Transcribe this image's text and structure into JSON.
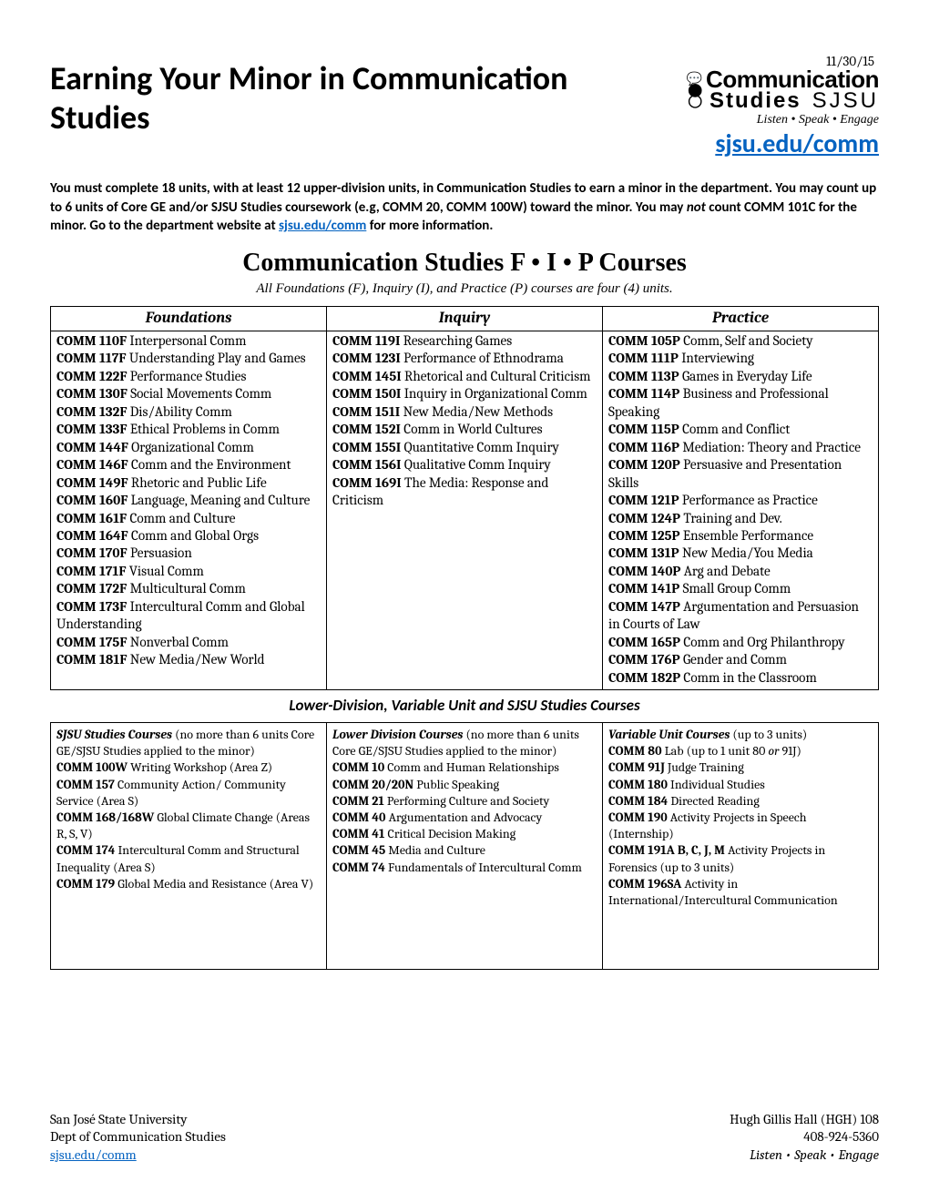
{
  "date": "11/30/15",
  "title": "Earning Your Minor in Communication Studies",
  "logo": {
    "line1": "Communication",
    "line2a": "Studies",
    "line2b": "SJSU",
    "tagline": "Listen  •  Speak  •  Engage",
    "icons": [
      "( )",
      "◯",
      "◯"
    ]
  },
  "header_link_text": "sjsu.edu/comm",
  "intro_a": "You must complete 18 units, with at least 12 upper-division units, in Communication Studies to earn a minor in the department. You may count up to 6 units of Core GE and/or SJSU Studies coursework (e.g, COMM 20, COMM 100W) toward the minor. You may ",
  "intro_not": "not",
  "intro_b": " count COMM 101C for the minor. Go to the department website at ",
  "intro_link": "sjsu.edu/comm",
  "intro_c": " for more information.",
  "fip_title": "Communication Studies F • I • P Courses",
  "fip_sub": "All Foundations (F), Inquiry (I), and Practice (P) courses are four (4) units.",
  "cols": {
    "f": "Foundations",
    "i": "Inquiry",
    "p": "Practice"
  },
  "foundations": [
    {
      "c": "COMM 110F",
      "t": " Interpersonal Comm"
    },
    {
      "c": "COMM 117F",
      "t": " Understanding Play and Games"
    },
    {
      "c": "COMM 122F",
      "t": " Performance Studies"
    },
    {
      "c": "COMM 130F",
      "t": " Social Movements Comm"
    },
    {
      "c": "COMM 132F",
      "t": " Dis/Ability Comm"
    },
    {
      "c": "COMM 133F",
      "t": " Ethical Problems in Comm"
    },
    {
      "c": "COMM 144F",
      "t": " Organizational Comm"
    },
    {
      "c": "COMM 146F",
      "t": " Comm and the Environment"
    },
    {
      "c": "COMM 149F",
      "t": " Rhetoric and Public Life"
    },
    {
      "c": "COMM 160F",
      "t": " Language, Meaning and Culture"
    },
    {
      "c": "COMM 161F",
      "t": " Comm and Culture"
    },
    {
      "c": "COMM 164F",
      "t": " Comm and Global Orgs"
    },
    {
      "c": "COMM 170F",
      "t": " Persuasion"
    },
    {
      "c": "COMM 171F",
      "t": " Visual Comm"
    },
    {
      "c": "COMM 172F",
      "t": " Multicultural Comm"
    },
    {
      "c": "COMM 173F",
      "t": " Intercultural Comm and Global Understanding"
    },
    {
      "c": "COMM 175F",
      "t": " Nonverbal Comm"
    },
    {
      "c": "COMM 181F",
      "t": " New Media/New World"
    }
  ],
  "inquiry": [
    {
      "c": "COMM 119I",
      "t": " Researching Games"
    },
    {
      "c": "COMM 123I",
      "t": " Performance of Ethnodrama"
    },
    {
      "c": "COMM 145I",
      "t": " Rhetorical and Cultural Criticism"
    },
    {
      "c": "COMM 150I",
      "t": " Inquiry in Organizational Comm"
    },
    {
      "c": "COMM 151I",
      "t": " New Media/New Methods"
    },
    {
      "c": "COMM 152I",
      "t": " Comm in World Cultures"
    },
    {
      "c": "COMM 155I",
      "t": " Quantitative Comm Inquiry"
    },
    {
      "c": "COMM 156I",
      "t": " Qualitative Comm Inquiry"
    },
    {
      "c": "COMM 169I",
      "t": " The Media: Response and Criticism"
    }
  ],
  "practice": [
    {
      "c": "COMM 105P",
      "t": " Comm, Self and Society"
    },
    {
      "c": "COMM 111P",
      "t": " Interviewing"
    },
    {
      "c": "COMM 113P",
      "t": " Games in Everyday Life"
    },
    {
      "c": "COMM 114P",
      "t": " Business and Professional Speaking"
    },
    {
      "c": "COMM 115P",
      "t": " Comm and Conflict"
    },
    {
      "c": "COMM 116P",
      "t": " Mediation: Theory and Practice"
    },
    {
      "c": "COMM 120P",
      "t": " Persuasive and Presentation Skills"
    },
    {
      "c": "COMM 121P",
      "t": " Performance as Practice"
    },
    {
      "c": "COMM 124P",
      "t": " Training and Dev."
    },
    {
      "c": "COMM 125P",
      "t": " Ensemble Performance"
    },
    {
      "c": "COMM 131P",
      "t": " New Media/You Media"
    },
    {
      "c": "COMM 140P",
      "t": " Arg and Debate"
    },
    {
      "c": "COMM 141P",
      "t": " Small Group Comm"
    },
    {
      "c": "COMM 147P",
      "t": " Argumentation and Persuasion in Courts of Law"
    },
    {
      "c": "COMM 165P",
      "t": " Comm and Org Philanthropy"
    },
    {
      "c": "COMM 176P",
      "t": " Gender and Comm"
    },
    {
      "c": "COMM 182P",
      "t": " Comm in the Classroom"
    }
  ],
  "mid_title": "Lower-Division, Variable Unit and SJSU Studies Courses",
  "sjsu_head": "SJSU Studies Courses",
  "sjsu_head_note": " (no more than 6 units Core GE/SJSU Studies applied to the minor)",
  "sjsu": [
    {
      "c": "COMM 100W",
      "t": " Writing Workshop (Area Z)"
    },
    {
      "c": "COMM 157",
      "t": " Community Action/ Community Service (Area S)"
    },
    {
      "c": "COMM 168/168W",
      "t": " Global Climate Change (Areas R, S, V)"
    },
    {
      "c": "COMM 174",
      "t": " Intercultural Comm and Structural Inequality (Area S)"
    },
    {
      "c": "COMM 179",
      "t": " Global Media and Resistance (Area V)"
    }
  ],
  "lower_head": "Lower Division Courses",
  "lower_head_note": "  (no more than 6 units Core GE/SJSU Studies applied to the minor)",
  "lower": [
    {
      "c": "COMM 10",
      "t": " Comm and Human Relationships"
    },
    {
      "c": "COMM 20/20N",
      "t": " Public Speaking"
    },
    {
      "c": "COMM 21",
      "t": " Performing Culture and Society"
    },
    {
      "c": "COMM 40",
      "t": " Argumentation and Advocacy"
    },
    {
      "c": "COMM 41",
      "t": " Critical Decision Making"
    },
    {
      "c": "COMM 45",
      "t": " Media and Culture"
    },
    {
      "c": "COMM 74",
      "t": " Fundamentals of Intercultural Comm"
    }
  ],
  "var_head": "Variable Unit Courses",
  "var_head_note": " (up to 3 units)",
  "variable": [
    {
      "c": "COMM 80",
      "t": " Lab (up to 1 unit 80 ",
      "ti": "or",
      "t2": " 91J)"
    },
    {
      "c": "COMM 91J",
      "t": " Judge Training"
    },
    {
      "c": "COMM 180",
      "t": " Individual Studies"
    },
    {
      "c": "COMM 184",
      "t": " Directed Reading"
    },
    {
      "c": "COMM 190",
      "t": " Activity Projects in Speech (Internship)"
    },
    {
      "c": "COMM 191A B, C, J, M",
      "t": " Activity Projects in Forensics (up to 3 units)"
    },
    {
      "c": "COMM 196SA",
      "t": " Activity in International/Intercultural Communication"
    }
  ],
  "footer": {
    "l1": "San José State University",
    "l2": "Dept of Communication Studies",
    "l3": "sjsu.edu/comm",
    "r1": "Hugh Gillis Hall (HGH) 108",
    "r2": "408-924-5360",
    "r3": "Listen • Speak • Engage"
  }
}
